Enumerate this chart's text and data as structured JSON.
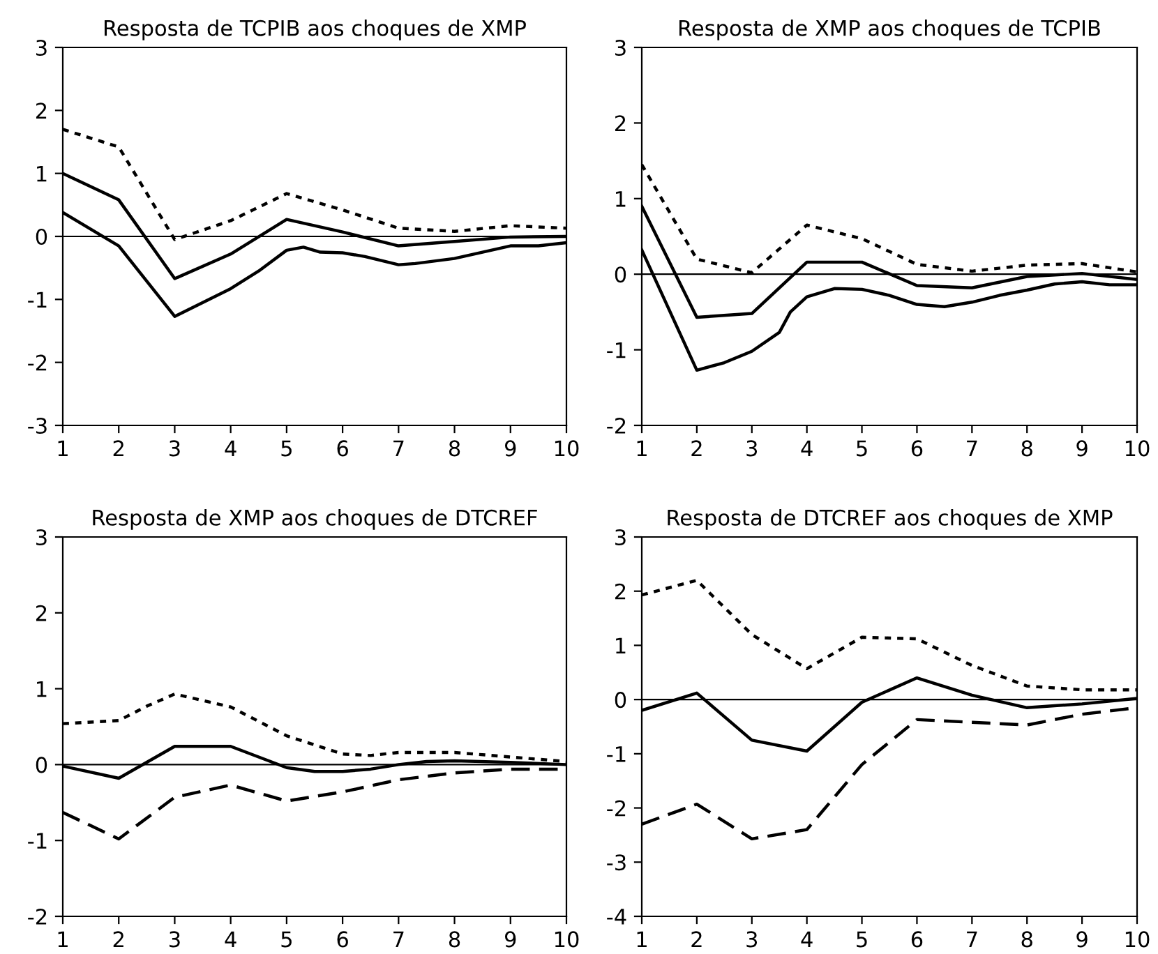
{
  "chart_data": [
    {
      "type": "line",
      "title": "Resposta de TCPIB aos choques de XMP",
      "xlim": [
        1,
        10
      ],
      "xticks": [
        1,
        2,
        3,
        4,
        5,
        6,
        7,
        8,
        9,
        10
      ],
      "ylim": [
        -3,
        3
      ],
      "yticks": [
        -3,
        -2,
        -1,
        0,
        1,
        2,
        3
      ],
      "grid": false,
      "ref_lines": [
        {
          "axis": "y",
          "value": 0,
          "color": "#000000"
        }
      ],
      "series": [
        {
          "color": "#000000",
          "line_style": "dotted",
          "x": [
            1,
            2,
            3,
            4,
            5,
            6,
            7,
            8,
            9,
            10
          ],
          "values": [
            1.7,
            1.42,
            -0.05,
            0.25,
            0.68,
            0.42,
            0.13,
            0.08,
            0.17,
            0.13
          ]
        },
        {
          "color": "#000000",
          "line_style": "solid",
          "x": [
            1,
            2,
            3,
            4,
            5,
            6,
            7,
            8,
            9,
            10
          ],
          "values": [
            1.0,
            0.58,
            -0.67,
            -0.28,
            0.27,
            0.07,
            -0.15,
            -0.08,
            -0.01,
            0.0
          ]
        },
        {
          "color": "#000000",
          "line_style": "solid",
          "x": [
            1,
            2,
            3,
            4,
            4.5,
            5,
            5.3,
            5.6,
            6,
            6.4,
            7,
            7.3,
            8,
            9,
            9.5,
            10
          ],
          "values": [
            0.38,
            -0.15,
            -1.27,
            -0.83,
            -0.55,
            -0.22,
            -0.17,
            -0.25,
            -0.26,
            -0.32,
            -0.45,
            -0.43,
            -0.35,
            -0.15,
            -0.15,
            -0.1
          ]
        }
      ]
    },
    {
      "type": "line",
      "title": "Resposta de XMP aos choques de TCPIB",
      "xlim": [
        1,
        10
      ],
      "xticks": [
        1,
        2,
        3,
        4,
        5,
        6,
        7,
        8,
        9,
        10
      ],
      "ylim": [
        -2,
        3
      ],
      "yticks": [
        -2,
        -1,
        0,
        1,
        2,
        3
      ],
      "grid": false,
      "ref_lines": [
        {
          "axis": "y",
          "value": 0,
          "color": "#000000"
        }
      ],
      "series": [
        {
          "color": "#000000",
          "line_style": "dotted",
          "x": [
            1,
            2,
            3,
            4,
            5,
            6,
            7,
            8,
            9,
            10
          ],
          "values": [
            1.45,
            0.2,
            0.02,
            0.65,
            0.47,
            0.13,
            0.04,
            0.12,
            0.14,
            0.03
          ]
        },
        {
          "color": "#000000",
          "line_style": "solid",
          "x": [
            1,
            2,
            3,
            4,
            5,
            6,
            7,
            8,
            9,
            10
          ],
          "values": [
            0.9,
            -0.57,
            -0.52,
            0.16,
            0.16,
            -0.15,
            -0.18,
            -0.03,
            0.01,
            -0.07
          ]
        },
        {
          "color": "#000000",
          "line_style": "solid",
          "x": [
            1,
            2,
            2.5,
            3,
            3.5,
            3.7,
            4,
            4.5,
            5,
            5.5,
            6,
            6.5,
            7,
            7.5,
            8,
            8.5,
            9,
            9.5,
            10
          ],
          "values": [
            0.32,
            -1.27,
            -1.17,
            -1.02,
            -0.77,
            -0.5,
            -0.3,
            -0.19,
            -0.2,
            -0.28,
            -0.4,
            -0.43,
            -0.37,
            -0.28,
            -0.21,
            -0.13,
            -0.1,
            -0.14,
            -0.14
          ]
        }
      ]
    },
    {
      "type": "line",
      "title": "Resposta de XMP aos choques de DTCREF",
      "xlim": [
        1,
        10
      ],
      "xticks": [
        1,
        2,
        3,
        4,
        5,
        6,
        7,
        8,
        9,
        10
      ],
      "ylim": [
        -2,
        3
      ],
      "yticks": [
        -2,
        -1,
        0,
        1,
        2,
        3
      ],
      "grid": false,
      "ref_lines": [
        {
          "axis": "y",
          "value": 0,
          "color": "#000000"
        }
      ],
      "series": [
        {
          "color": "#000000",
          "line_style": "dotted",
          "x": [
            1,
            2,
            2.5,
            3,
            4,
            5,
            6,
            6.5,
            7,
            8,
            9,
            10
          ],
          "values": [
            0.54,
            0.58,
            0.77,
            0.93,
            0.76,
            0.38,
            0.14,
            0.12,
            0.16,
            0.16,
            0.1,
            0.04
          ]
        },
        {
          "color": "#000000",
          "line_style": "solid",
          "x": [
            1,
            2,
            3,
            4,
            5,
            5.5,
            6,
            6.5,
            7,
            7.5,
            8,
            9,
            10
          ],
          "values": [
            -0.02,
            -0.18,
            0.24,
            0.24,
            -0.04,
            -0.09,
            -0.09,
            -0.06,
            0.0,
            0.04,
            0.05,
            0.03,
            0.0
          ]
        },
        {
          "color": "#000000",
          "line_style": "dashed",
          "x": [
            1,
            2,
            3,
            4,
            5,
            6,
            7,
            8,
            9,
            10
          ],
          "values": [
            -0.63,
            -0.98,
            -0.43,
            -0.27,
            -0.48,
            -0.36,
            -0.2,
            -0.11,
            -0.06,
            -0.06
          ]
        }
      ]
    },
    {
      "type": "line",
      "title": "Resposta de DTCREF aos choques de XMP",
      "xlim": [
        1,
        10
      ],
      "xticks": [
        1,
        2,
        3,
        4,
        5,
        6,
        7,
        8,
        9,
        10
      ],
      "ylim": [
        -4,
        3
      ],
      "yticks": [
        -4,
        -3,
        -2,
        -1,
        0,
        1,
        2,
        3
      ],
      "grid": false,
      "ref_lines": [
        {
          "axis": "y",
          "value": 0,
          "color": "#000000"
        }
      ],
      "series": [
        {
          "color": "#000000",
          "line_style": "dotted",
          "x": [
            1,
            2,
            3,
            4,
            5,
            6,
            7,
            8,
            9,
            10
          ],
          "values": [
            1.93,
            2.2,
            1.2,
            0.57,
            1.15,
            1.12,
            0.63,
            0.25,
            0.18,
            0.18
          ]
        },
        {
          "color": "#000000",
          "line_style": "solid",
          "x": [
            1,
            2,
            3,
            4,
            5,
            6,
            7,
            8,
            9,
            10
          ],
          "values": [
            -0.2,
            0.12,
            -0.75,
            -0.95,
            -0.05,
            0.4,
            0.08,
            -0.15,
            -0.08,
            0.02
          ]
        },
        {
          "color": "#000000",
          "line_style": "dashed",
          "x": [
            1,
            2,
            3,
            4,
            5,
            6,
            7,
            8,
            9,
            10
          ],
          "values": [
            -2.3,
            -1.93,
            -2.57,
            -2.4,
            -1.2,
            -0.37,
            -0.42,
            -0.47,
            -0.27,
            -0.15
          ]
        }
      ]
    }
  ]
}
